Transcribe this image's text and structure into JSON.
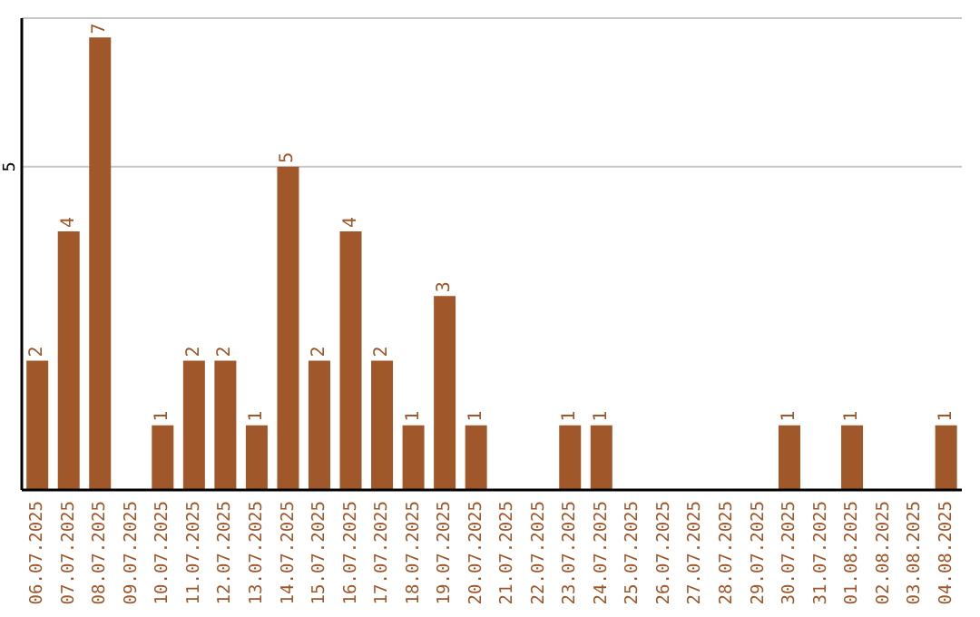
{
  "chart_data": {
    "type": "bar",
    "categories": [
      "06.07.2025",
      "07.07.2025",
      "08.07.2025",
      "09.07.2025",
      "10.07.2025",
      "11.07.2025",
      "12.07.2025",
      "13.07.2025",
      "14.07.2025",
      "15.07.2025",
      "16.07.2025",
      "17.07.2025",
      "18.07.2025",
      "19.07.2025",
      "20.07.2025",
      "21.07.2025",
      "22.07.2025",
      "23.07.2025",
      "24.07.2025",
      "25.07.2025",
      "26.07.2025",
      "27.07.2025",
      "28.07.2025",
      "29.07.2025",
      "30.07.2025",
      "31.07.2025",
      "01.08.2025",
      "02.08.2025",
      "03.08.2025",
      "04.08.2025"
    ],
    "values": [
      2,
      4,
      7,
      0,
      1,
      2,
      2,
      1,
      5,
      2,
      4,
      2,
      1,
      3,
      1,
      0,
      0,
      1,
      1,
      0,
      0,
      0,
      0,
      0,
      1,
      0,
      1,
      0,
      0,
      1
    ],
    "value_labels": [
      "2",
      "4",
      "7",
      null,
      "1",
      "2",
      "2",
      "1",
      "5",
      "2",
      "4",
      "2",
      "1",
      "3",
      "1",
      null,
      null,
      "1",
      "1",
      null,
      null,
      null,
      null,
      null,
      "1",
      null,
      "1",
      null,
      null,
      "1"
    ],
    "color": "#a0572a",
    "ylim": [
      0,
      7.3
    ],
    "yticks": [
      5
    ],
    "grid": "y"
  }
}
